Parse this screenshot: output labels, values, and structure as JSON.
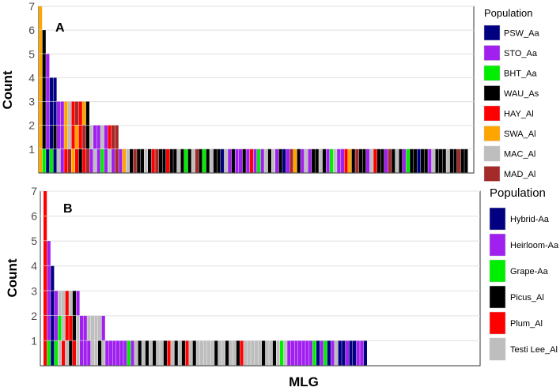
{
  "chart_data": [
    {
      "type": "bar",
      "panel_label": "A",
      "ylabel": "Count",
      "ylim": [
        0,
        7
      ],
      "y_ticks": [
        1,
        2,
        3,
        4,
        5,
        6,
        7
      ],
      "legend": {
        "title": "Population",
        "entries": [
          {
            "name": "PSW_Aa",
            "color": "#000080"
          },
          {
            "name": "STO_Aa",
            "color": "#a020f0"
          },
          {
            "name": "BHT_Aa",
            "color": "#00ee00"
          },
          {
            "name": "WAU_As",
            "color": "#000000"
          },
          {
            "name": "HAY_Al",
            "color": "#ff0000"
          },
          {
            "name": "SWA_Al",
            "color": "#ffa500"
          },
          {
            "name": "MAC_Al",
            "color": "#bebebe"
          },
          {
            "name": "MAD_Al",
            "color": "#a52a2a"
          }
        ]
      },
      "bars": [
        [
          "SWA_Al",
          "SWA_Al",
          "SWA_Al",
          "SWA_Al",
          "SWA_Al",
          "SWA_Al",
          "SWA_Al"
        ],
        [
          "BHT_Aa",
          "WAU_As",
          "WAU_As",
          "WAU_As",
          "WAU_As",
          "WAU_As"
        ],
        [
          "PSW_Aa",
          "STO_Aa",
          "STO_Aa",
          "STO_Aa",
          "STO_Aa"
        ],
        [
          "BHT_Aa",
          "PSW_Aa",
          "PSW_Aa",
          "PSW_Aa"
        ],
        [
          "PSW_Aa",
          "WAU_As",
          "PSW_Aa",
          "PSW_Aa"
        ],
        [
          "MAC_Al",
          "STO_Aa",
          "STO_Aa"
        ],
        [
          "STO_Aa",
          "STO_Aa",
          "STO_Aa"
        ],
        [
          "HAY_Al",
          "SWA_Al",
          "SWA_Al"
        ],
        [
          "MAD_Al",
          "MAC_Al",
          "MAC_Al"
        ],
        [
          "SWA_Al",
          "HAY_Al",
          "HAY_Al"
        ],
        [
          "HAY_Al",
          "SWA_Al",
          "MAD_Al"
        ],
        [
          "WAU_As",
          "HAY_Al",
          "HAY_Al"
        ],
        [
          "HAY_Al",
          "MAD_Al",
          "SWA_Al"
        ],
        [
          "MAD_Al",
          "WAU_As",
          "WAU_As"
        ],
        [
          "STO_Aa",
          "MAC_Al"
        ],
        [
          "MAC_Al",
          "STO_Aa"
        ],
        [
          "STO_Aa",
          "STO_Aa"
        ],
        [
          "BHT_Aa",
          "MAC_Al"
        ],
        [
          "STO_Aa",
          "STO_Aa"
        ],
        [
          "MAC_Al",
          "HAY_Al"
        ],
        [
          "STO_Aa",
          "MAD_Al"
        ],
        [
          "MAD_Al",
          "MAD_Al"
        ],
        [
          "STO_Aa"
        ],
        [
          "SWA_Al"
        ],
        [
          "MAC_Al"
        ],
        [
          "WAU_As"
        ],
        [
          "MAD_Al"
        ],
        [
          "WAU_As"
        ],
        [
          "WAU_As"
        ],
        [
          "MAC_Al"
        ],
        [
          "WAU_As"
        ],
        [
          "HAY_Al"
        ],
        [
          "MAD_Al"
        ],
        [
          "WAU_As"
        ],
        [
          "WAU_As"
        ],
        [
          "HAY_Al"
        ],
        [
          "WAU_As"
        ],
        [
          "WAU_As"
        ],
        [
          "MAC_Al"
        ],
        [
          "WAU_As"
        ],
        [
          "BHT_Aa"
        ],
        [
          "WAU_As"
        ],
        [
          "MAC_Al"
        ],
        [
          "MAD_Al"
        ],
        [
          "WAU_As"
        ],
        [
          "BHT_Aa"
        ],
        [
          "WAU_As"
        ],
        [
          "MAC_Al"
        ],
        [
          "WAU_As"
        ],
        [
          "WAU_As"
        ],
        [
          "PSW_Aa"
        ],
        [
          "MAC_Al"
        ],
        [
          "STO_Aa"
        ],
        [
          "WAU_As"
        ],
        [
          "STO_Aa"
        ],
        [
          "STO_Aa"
        ],
        [
          "WAU_As"
        ],
        [
          "STO_Aa"
        ],
        [
          "HAY_Al"
        ],
        [
          "STO_Aa"
        ],
        [
          "BHT_Aa"
        ],
        [
          "STO_Aa"
        ],
        [
          "MAC_Al"
        ],
        [
          "WAU_As"
        ],
        [
          "MAC_Al"
        ],
        [
          "STO_Aa"
        ],
        [
          "WAU_As"
        ],
        [
          "PSW_Aa"
        ],
        [
          "STO_Aa"
        ],
        [
          "MAD_Al"
        ],
        [
          "SWA_Al"
        ],
        [
          "WAU_As"
        ],
        [
          "STO_Aa"
        ],
        [
          "MAC_Al"
        ],
        [
          "STO_Aa"
        ],
        [
          "WAU_As"
        ],
        [
          "WAU_As"
        ],
        [
          "MAC_Al"
        ],
        [
          "WAU_As"
        ],
        [
          "STO_Aa"
        ],
        [
          "BHT_Aa"
        ],
        [
          "MAC_Al"
        ],
        [
          "STO_Aa"
        ],
        [
          "STO_Aa"
        ],
        [
          "HAY_Al"
        ],
        [
          "SWA_Al"
        ],
        [
          "WAU_As"
        ],
        [
          "MAD_Al"
        ],
        [
          "WAU_As"
        ],
        [
          "WAU_As"
        ],
        [
          "STO_Aa"
        ],
        [
          "MAC_Al"
        ],
        [
          "HAY_Al"
        ],
        [
          "WAU_As"
        ],
        [
          "WAU_As"
        ],
        [
          "STO_Aa"
        ],
        [
          "MAD_Al"
        ],
        [
          "WAU_As"
        ],
        [
          "MAC_Al"
        ],
        [
          "WAU_As"
        ],
        [
          "STO_Aa"
        ],
        [
          "BHT_Aa"
        ],
        [
          "WAU_As"
        ],
        [
          "WAU_As"
        ],
        [
          "PSW_Aa"
        ],
        [
          "WAU_As"
        ],
        [
          "WAU_As"
        ],
        [
          "STO_Aa"
        ],
        [
          "MAC_Al"
        ],
        [
          "WAU_As"
        ],
        [
          "WAU_As"
        ],
        [
          "WAU_As"
        ],
        [
          "MAC_Al"
        ],
        [
          "WAU_As"
        ],
        [
          "WAU_As"
        ],
        [
          "MAD_Al"
        ],
        [
          "WAU_As"
        ],
        [
          "WAU_As"
        ]
      ]
    },
    {
      "type": "bar",
      "panel_label": "B",
      "ylabel": "Count",
      "xlabel": "MLG",
      "ylim": [
        0,
        7
      ],
      "y_ticks": [
        1,
        2,
        3,
        4,
        5,
        6,
        7
      ],
      "legend": {
        "title": "Population",
        "entries": [
          {
            "name": "Hybrid-Aa",
            "color": "#000080"
          },
          {
            "name": "Heirloom-Aa",
            "color": "#a020f0"
          },
          {
            "name": "Grape-Aa",
            "color": "#00ee00"
          },
          {
            "name": "Picus_Al",
            "color": "#000000"
          },
          {
            "name": "Plum_Al",
            "color": "#ff0000"
          },
          {
            "name": "Testi Lee_Al",
            "color": "#bebebe"
          }
        ]
      },
      "bars": [
        [
          "Plum_Al",
          "Plum_Al",
          "Plum_Al",
          "Plum_Al",
          "Plum_Al",
          "Plum_Al",
          "Plum_Al"
        ],
        [
          "Grape-Aa",
          "Heirloom-Aa",
          "Heirloom-Aa",
          "Heirloom-Aa",
          "Heirloom-Aa"
        ],
        [
          "Hybrid-Aa",
          "Hybrid-Aa",
          "Hybrid-Aa",
          "Hybrid-Aa"
        ],
        [
          "Grape-Aa",
          "Heirloom-Aa",
          "Heirloom-Aa"
        ],
        [
          "Testi Lee_Al",
          "Grape-Aa",
          "Testi Lee_Al"
        ],
        [
          "Plum_Al",
          "Testi Lee_Al",
          "Testi Lee_Al"
        ],
        [
          "Testi Lee_Al",
          "Plum_Al",
          "Plum_Al"
        ],
        [
          "Picus_Al",
          "Plum_Al",
          "Testi Lee_Al"
        ],
        [
          "Plum_Al",
          "Picus_Al",
          "Picus_Al"
        ],
        [
          "Testi Lee_Al",
          "Testi Lee_Al",
          "Heirloom-Aa"
        ],
        [
          "Heirloom-Aa",
          "Heirloom-Aa"
        ],
        [
          "Heirloom-Aa",
          "Heirloom-Aa"
        ],
        [
          "Heirloom-Aa",
          "Testi Lee_Al"
        ],
        [
          "Testi Lee_Al",
          "Testi Lee_Al"
        ],
        [
          "Testi Lee_Al",
          "Testi Lee_Al"
        ],
        [
          "Picus_Al",
          "Testi Lee_Al"
        ],
        [
          "Testi Lee_Al",
          "Heirloom-Aa"
        ],
        [
          "Heirloom-Aa"
        ],
        [
          "Heirloom-Aa"
        ],
        [
          "Heirloom-Aa"
        ],
        [
          "Heirloom-Aa"
        ],
        [
          "Heirloom-Aa"
        ],
        [
          "Heirloom-Aa"
        ],
        [
          "Grape-Aa"
        ],
        [
          "Heirloom-Aa"
        ],
        [
          "Testi Lee_Al"
        ],
        [
          "Picus_Al"
        ],
        [
          "Testi Lee_Al"
        ],
        [
          "Picus_Al"
        ],
        [
          "Testi Lee_Al"
        ],
        [
          "Picus_Al"
        ],
        [
          "Testi Lee_Al"
        ],
        [
          "Testi Lee_Al"
        ],
        [
          "Picus_Al"
        ],
        [
          "Plum_Al"
        ],
        [
          "Testi Lee_Al"
        ],
        [
          "Picus_Al"
        ],
        [
          "Testi Lee_Al"
        ],
        [
          "Picus_Al"
        ],
        [
          "Plum_Al"
        ],
        [
          "Testi Lee_Al"
        ],
        [
          "Picus_Al"
        ],
        [
          "Testi Lee_Al"
        ],
        [
          "Testi Lee_Al"
        ],
        [
          "Testi Lee_Al"
        ],
        [
          "Testi Lee_Al"
        ],
        [
          "Testi Lee_Al"
        ],
        [
          "Picus_Al"
        ],
        [
          "Testi Lee_Al"
        ],
        [
          "Testi Lee_Al"
        ],
        [
          "Picus_Al"
        ],
        [
          "Testi Lee_Al"
        ],
        [
          "Testi Lee_Al"
        ],
        [
          "Picus_Al"
        ],
        [
          "Plum_Al"
        ],
        [
          "Testi Lee_Al"
        ],
        [
          "Testi Lee_Al"
        ],
        [
          "Testi Lee_Al"
        ],
        [
          "Testi Lee_Al"
        ],
        [
          "Testi Lee_Al"
        ],
        [
          "Picus_Al"
        ],
        [
          "Testi Lee_Al"
        ],
        [
          "Testi Lee_Al"
        ],
        [
          "Picus_Al"
        ],
        [
          "Testi Lee_Al"
        ],
        [
          "Grape-Aa"
        ],
        [
          "Testi Lee_Al"
        ],
        [
          "Heirloom-Aa"
        ],
        [
          "Heirloom-Aa"
        ],
        [
          "Heirloom-Aa"
        ],
        [
          "Heirloom-Aa"
        ],
        [
          "Heirloom-Aa"
        ],
        [
          "Heirloom-Aa"
        ],
        [
          "Heirloom-Aa"
        ],
        [
          "Grape-Aa"
        ],
        [
          "Hybrid-Aa"
        ],
        [
          "Heirloom-Aa"
        ],
        [
          "Grape-Aa"
        ],
        [
          "Hybrid-Aa"
        ],
        [
          "Heirloom-Aa"
        ],
        [
          "Testi Lee_Al"
        ],
        [
          "Hybrid-Aa"
        ],
        [
          "Hybrid-Aa"
        ],
        [
          "Heirloom-Aa"
        ],
        [
          "Hybrid-Aa"
        ],
        [
          "Hybrid-Aa"
        ],
        [
          "Heirloom-Aa"
        ],
        [
          "Heirloom-Aa"
        ],
        [
          "Hybrid-Aa"
        ]
      ]
    }
  ]
}
